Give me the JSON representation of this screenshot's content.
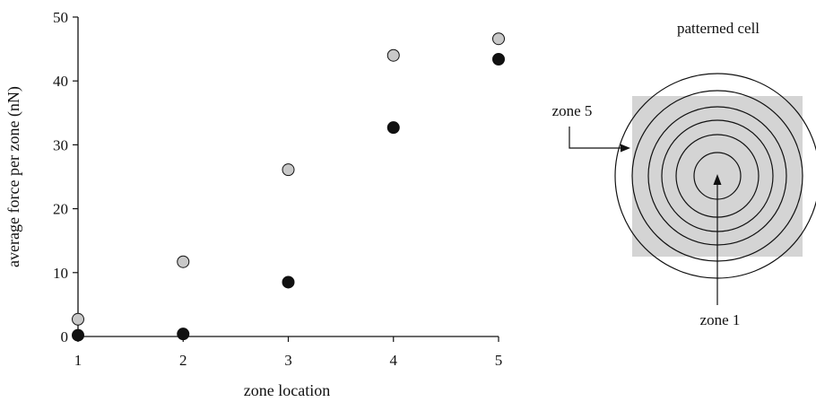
{
  "chart_data": {
    "type": "scatter",
    "x_ticks": [
      1,
      2,
      3,
      4,
      5
    ],
    "y_ticks": [
      0,
      10,
      20,
      30,
      40,
      50
    ],
    "xlim": [
      1,
      5
    ],
    "ylim": [
      0,
      50
    ],
    "xlabel": "zone location",
    "ylabel": "average force per zone (nN)",
    "grid": false,
    "series": [
      {
        "marker_color": "#c8c8c8",
        "points": [
          [
            1,
            2.7
          ],
          [
            2,
            11.7
          ],
          [
            3,
            26.1
          ],
          [
            4,
            44.0
          ],
          [
            5,
            46.6
          ]
        ]
      },
      {
        "marker_color": "#111111",
        "points": [
          [
            1,
            0.2
          ],
          [
            2,
            0.4
          ],
          [
            3,
            8.5
          ],
          [
            4,
            32.7
          ],
          [
            5,
            43.4
          ]
        ]
      }
    ]
  },
  "diagram": {
    "title": "patterned cell",
    "outer_label": "zone 5",
    "inner_label": "zone 1",
    "square_fill": "#d4d4d4"
  }
}
